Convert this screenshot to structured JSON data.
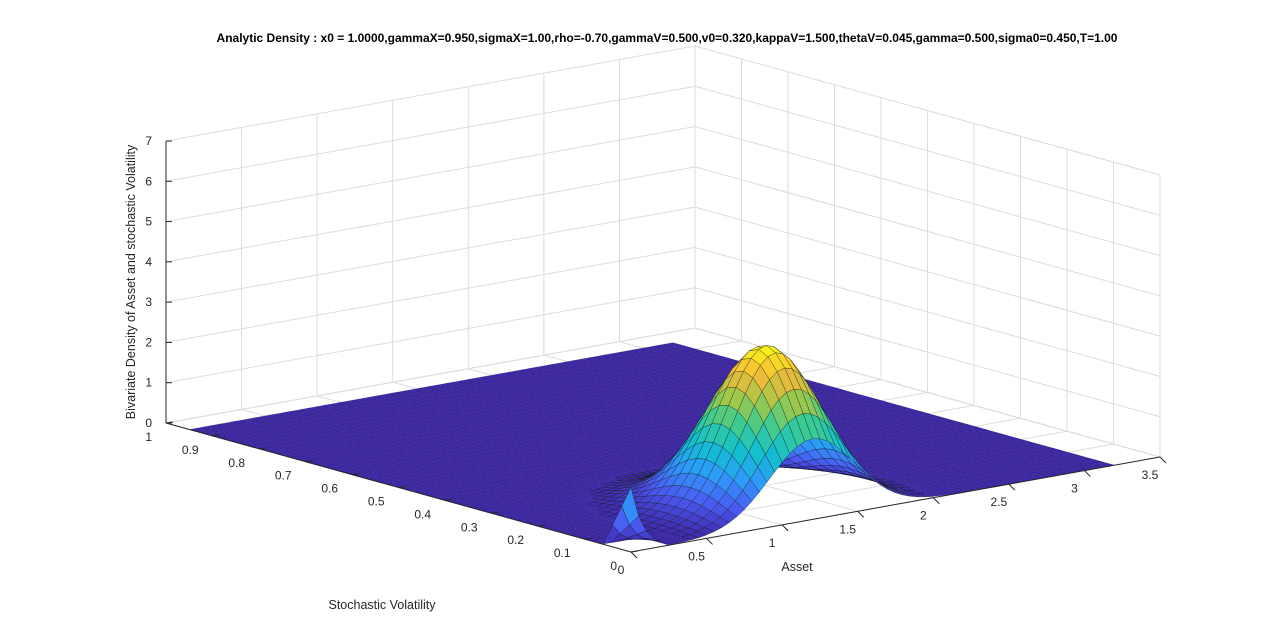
{
  "chart_data": {
    "type": "surface",
    "title": "Analytic Density : x0 = 1.0000,gammaX=0.950,sigmaX=1.00,rho=-0.70,gammaV=0.500,v0=0.320,kappaV=1.500,thetaV=0.045,gamma=0.500,sigma0=0.450,T=1.00",
    "xlabel": "Asset",
    "ylabel": "Stochastic Volatility",
    "zlabel": "Bivariate Density of Asset and stochastic Volatility",
    "xlim": [
      0,
      3.5
    ],
    "ylim": [
      0,
      1
    ],
    "zlim": [
      0,
      7
    ],
    "xticks": [
      "0",
      "0.5",
      "1",
      "1.5",
      "2",
      "2.5",
      "3",
      "3.5"
    ],
    "yticks": [
      "0",
      "0.1",
      "0.2",
      "0.3",
      "0.4",
      "0.5",
      "0.6",
      "0.7",
      "0.8",
      "0.9",
      "1"
    ],
    "zticks": [
      "0",
      "1",
      "2",
      "3",
      "4",
      "5",
      "6",
      "7"
    ],
    "x_data_range": [
      0,
      3.2
    ],
    "y_data_range": [
      0,
      0.95
    ],
    "peak": {
      "asset": 1.2,
      "volatility": 0.1,
      "density": 4.0
    },
    "grid": true,
    "colormap": "parula",
    "colormap_colors": [
      "#3e26a8",
      "#4a5af2",
      "#2f9afa",
      "#12bfd0",
      "#3ccb93",
      "#a2c849",
      "#f5b93a",
      "#f9fb15"
    ]
  }
}
